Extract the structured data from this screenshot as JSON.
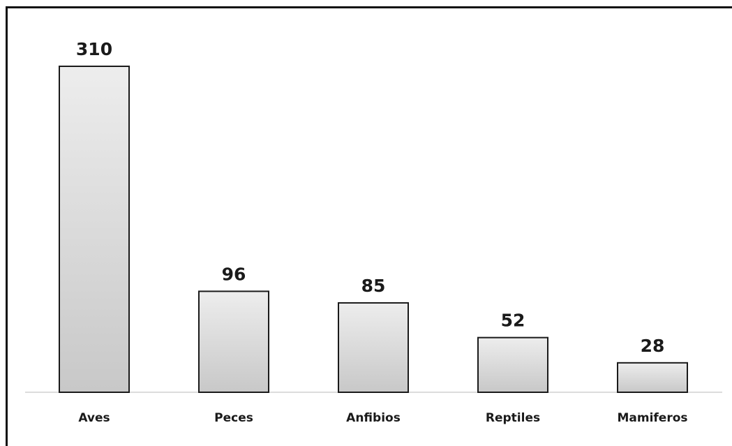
{
  "chart_data": {
    "type": "bar",
    "categories": [
      "Aves",
      "Peces",
      "Anfibios",
      "Reptiles",
      "Mamiferos"
    ],
    "values": [
      310,
      96,
      85,
      52,
      28
    ],
    "title": "",
    "xlabel": "",
    "ylabel": "",
    "ylim": [
      0,
      310
    ],
    "grid": false,
    "data_labels": true,
    "colors": {
      "bar_fill_top": "#ededed",
      "bar_fill_bottom": "#c8c8c8",
      "bar_stroke": "#1a1a1a",
      "baseline": "#d0d0d0",
      "text": "#1a1a1a"
    }
  }
}
